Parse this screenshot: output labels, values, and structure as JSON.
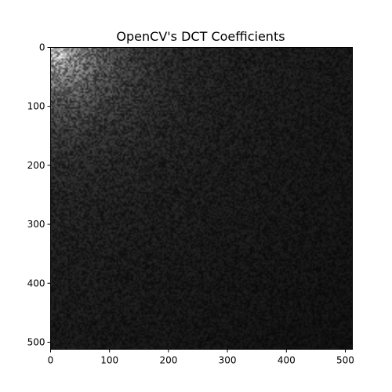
{
  "chart_data": {
    "type": "heatmap",
    "title": "OpenCV's DCT Coefficients",
    "xlabel": "",
    "ylabel": "",
    "xlim": [
      0,
      512
    ],
    "ylim": [
      512,
      0
    ],
    "x_ticks": [
      0,
      100,
      200,
      300,
      400,
      500
    ],
    "y_ticks": [
      0,
      100,
      200,
      300,
      400,
      500
    ],
    "colormap": "gray",
    "grid": false,
    "legend": "none",
    "description_of_values": {
      "max_region": "top-left corner (low frequencies)",
      "peak_brightness": 0.75,
      "background_brightness": 0.11,
      "far_corner_brightness": 0.06
    }
  },
  "colors": {
    "axes_edge": "#000000",
    "background": "#ffffff"
  }
}
